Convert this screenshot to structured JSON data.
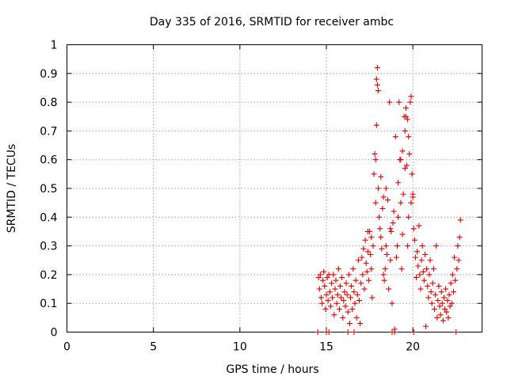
{
  "chart_data": {
    "type": "scatter",
    "title": "Day 335 of 2016, SRMTID for receiver ambc",
    "xlabel": "GPS time / hours",
    "ylabel": "SRMTID / TECUs",
    "xlim": [
      0,
      24
    ],
    "ylim": [
      0,
      1
    ],
    "x_ticks": [
      0,
      5,
      10,
      15,
      20
    ],
    "x_tick_labels": [
      "0",
      "5",
      "10",
      "15",
      "20"
    ],
    "y_ticks": [
      0,
      0.1,
      0.2,
      0.3,
      0.4,
      0.5,
      0.6,
      0.7,
      0.8,
      0.9,
      1
    ],
    "y_tick_labels": [
      "0",
      "0.1",
      "0.2",
      "0.3",
      "0.4",
      "0.5",
      "0.6",
      "0.7",
      "0.8",
      "0.9",
      "1"
    ],
    "grid": true,
    "marker": "+",
    "series": [
      {
        "name": "ambc",
        "color": "#e00000",
        "points": [
          [
            14.5,
            0.0
          ],
          [
            14.55,
            0.19
          ],
          [
            14.6,
            0.15
          ],
          [
            14.65,
            0.2
          ],
          [
            14.7,
            0.12
          ],
          [
            14.75,
            0.1
          ],
          [
            14.8,
            0.18
          ],
          [
            14.85,
            0.21
          ],
          [
            14.9,
            0.16
          ],
          [
            14.95,
            0.08
          ],
          [
            15.0,
            0.13
          ],
          [
            15.05,
            0.19
          ],
          [
            15.1,
            0.11
          ],
          [
            15.15,
            0.2
          ],
          [
            15.2,
            0.14
          ],
          [
            15.25,
            0.09
          ],
          [
            15.3,
            0.17
          ],
          [
            15.35,
            0.12
          ],
          [
            15.4,
            0.2
          ],
          [
            15.45,
            0.06
          ],
          [
            15.5,
            0.15
          ],
          [
            15.55,
            0.18
          ],
          [
            15.6,
            0.1
          ],
          [
            15.65,
            0.13
          ],
          [
            15.7,
            0.22
          ],
          [
            15.75,
            0.08
          ],
          [
            15.8,
            0.16
          ],
          [
            15.85,
            0.12
          ],
          [
            15.9,
            0.19
          ],
          [
            15.95,
            0.05
          ],
          [
            16.0,
            0.11
          ],
          [
            16.05,
            0.14
          ],
          [
            16.1,
            0.09
          ],
          [
            16.15,
            0.17
          ],
          [
            16.2,
            0.13
          ],
          [
            16.25,
            0.07
          ],
          [
            16.3,
            0.2
          ],
          [
            16.35,
            0.03
          ],
          [
            16.4,
            0.12
          ],
          [
            16.45,
            0.16
          ],
          [
            16.5,
            0.08
          ],
          [
            16.55,
            0.22
          ],
          [
            16.6,
            0.14
          ],
          [
            16.65,
            0.1
          ],
          [
            16.7,
            0.18
          ],
          [
            16.75,
            0.05
          ],
          [
            16.8,
            0.13
          ],
          [
            16.85,
            0.25
          ],
          [
            16.9,
            0.11
          ],
          [
            16.95,
            0.03
          ],
          [
            17.0,
            0.17
          ],
          [
            17.05,
            0.26
          ],
          [
            17.1,
            0.2
          ],
          [
            17.15,
            0.29
          ],
          [
            17.2,
            0.15
          ],
          [
            17.25,
            0.32
          ],
          [
            17.3,
            0.24
          ],
          [
            17.35,
            0.21
          ],
          [
            17.4,
            0.28
          ],
          [
            17.45,
            0.18
          ],
          [
            17.5,
            0.35
          ],
          [
            17.55,
            0.27
          ],
          [
            17.6,
            0.22
          ],
          [
            17.65,
            0.12
          ],
          [
            17.7,
            0.3
          ],
          [
            17.75,
            0.55
          ],
          [
            17.8,
            0.62
          ],
          [
            17.85,
            0.45
          ],
          [
            17.9,
            0.88
          ],
          [
            17.95,
            0.92
          ],
          [
            18.0,
            0.5
          ],
          [
            18.05,
            0.4
          ],
          [
            18.1,
            0.36
          ],
          [
            18.15,
            0.33
          ],
          [
            18.2,
            0.29
          ],
          [
            18.25,
            0.43
          ],
          [
            18.3,
            0.2
          ],
          [
            18.35,
            0.18
          ],
          [
            18.4,
            0.22
          ],
          [
            18.45,
            0.3
          ],
          [
            18.5,
            0.27
          ],
          [
            18.55,
            0.46
          ],
          [
            18.6,
            0.15
          ],
          [
            18.65,
            0.8
          ],
          [
            18.7,
            0.25
          ],
          [
            18.75,
            0.35
          ],
          [
            18.8,
            0.1
          ],
          [
            18.85,
            0.38
          ],
          [
            18.9,
            0.42
          ],
          [
            18.95,
            0.01
          ],
          [
            19.0,
            0.68
          ],
          [
            19.05,
            0.26
          ],
          [
            19.1,
            0.3
          ],
          [
            19.15,
            0.52
          ],
          [
            19.2,
            0.8
          ],
          [
            19.25,
            0.6
          ],
          [
            19.3,
            0.45
          ],
          [
            19.35,
            0.22
          ],
          [
            19.4,
            0.34
          ],
          [
            19.45,
            0.48
          ],
          [
            19.5,
            0.75
          ],
          [
            19.55,
            0.7
          ],
          [
            19.6,
            0.78
          ],
          [
            19.65,
            0.58
          ],
          [
            19.7,
            0.3
          ],
          [
            19.75,
            0.4
          ],
          [
            19.8,
            0.62
          ],
          [
            19.85,
            0.8
          ],
          [
            19.9,
            0.82
          ],
          [
            19.95,
            0.55
          ],
          [
            20.0,
            0.48
          ],
          [
            20.05,
            0.36
          ],
          [
            20.1,
            0.32
          ],
          [
            20.15,
            0.26
          ],
          [
            20.2,
            0.19
          ],
          [
            20.25,
            0.28
          ],
          [
            20.3,
            0.23
          ],
          [
            20.35,
            0.37
          ],
          [
            20.4,
            0.2
          ],
          [
            20.45,
            0.15
          ],
          [
            20.5,
            0.25
          ],
          [
            20.55,
            0.3
          ],
          [
            20.6,
            0.21
          ],
          [
            20.65,
            0.18
          ],
          [
            20.7,
            0.27
          ],
          [
            20.75,
            0.02
          ],
          [
            20.8,
            0.22
          ],
          [
            20.85,
            0.16
          ],
          [
            20.9,
            0.12
          ],
          [
            20.95,
            0.2
          ],
          [
            21.0,
            0.25
          ],
          [
            21.05,
            0.14
          ],
          [
            21.1,
            0.1
          ],
          [
            21.15,
            0.17
          ],
          [
            21.2,
            0.22
          ],
          [
            21.25,
            0.08
          ],
          [
            21.3,
            0.13
          ],
          [
            21.35,
            0.3
          ],
          [
            21.4,
            0.05
          ],
          [
            21.45,
            0.11
          ],
          [
            21.5,
            0.16
          ],
          [
            21.55,
            0.09
          ],
          [
            21.6,
            0.06
          ],
          [
            21.65,
            0.14
          ],
          [
            21.7,
            0.1
          ],
          [
            21.75,
            0.04
          ],
          [
            21.8,
            0.12
          ],
          [
            21.85,
            0.08
          ],
          [
            21.9,
            0.15
          ],
          [
            21.95,
            0.07
          ],
          [
            22.0,
            0.11
          ],
          [
            22.05,
            0.05
          ],
          [
            22.1,
            0.13
          ],
          [
            22.15,
            0.09
          ],
          [
            22.2,
            0.17
          ],
          [
            22.25,
            0.1
          ],
          [
            22.3,
            0.2
          ],
          [
            22.35,
            0.14
          ],
          [
            22.4,
            0.26
          ],
          [
            22.45,
            0.18
          ],
          [
            22.5,
            0.0
          ],
          [
            22.55,
            0.22
          ],
          [
            22.6,
            0.3
          ],
          [
            22.65,
            0.25
          ],
          [
            22.7,
            0.33
          ],
          [
            22.75,
            0.39
          ],
          [
            15.0,
            0.0
          ],
          [
            15.15,
            0.0
          ],
          [
            16.25,
            0.0
          ],
          [
            16.6,
            0.0
          ],
          [
            18.8,
            0.0
          ],
          [
            18.95,
            0.0
          ],
          [
            20.05,
            0.0
          ],
          [
            17.95,
            0.86
          ],
          [
            18.0,
            0.84
          ],
          [
            17.9,
            0.72
          ],
          [
            19.6,
            0.75
          ],
          [
            19.7,
            0.74
          ],
          [
            19.75,
            0.68
          ],
          [
            19.4,
            0.63
          ],
          [
            17.85,
            0.6
          ],
          [
            18.15,
            0.54
          ],
          [
            19.3,
            0.6
          ],
          [
            19.55,
            0.57
          ],
          [
            20.0,
            0.47
          ],
          [
            19.9,
            0.45
          ],
          [
            18.3,
            0.47
          ],
          [
            18.45,
            0.5
          ],
          [
            19.15,
            0.4
          ],
          [
            18.7,
            0.36
          ],
          [
            17.4,
            0.35
          ],
          [
            17.6,
            0.33
          ]
        ]
      }
    ]
  }
}
